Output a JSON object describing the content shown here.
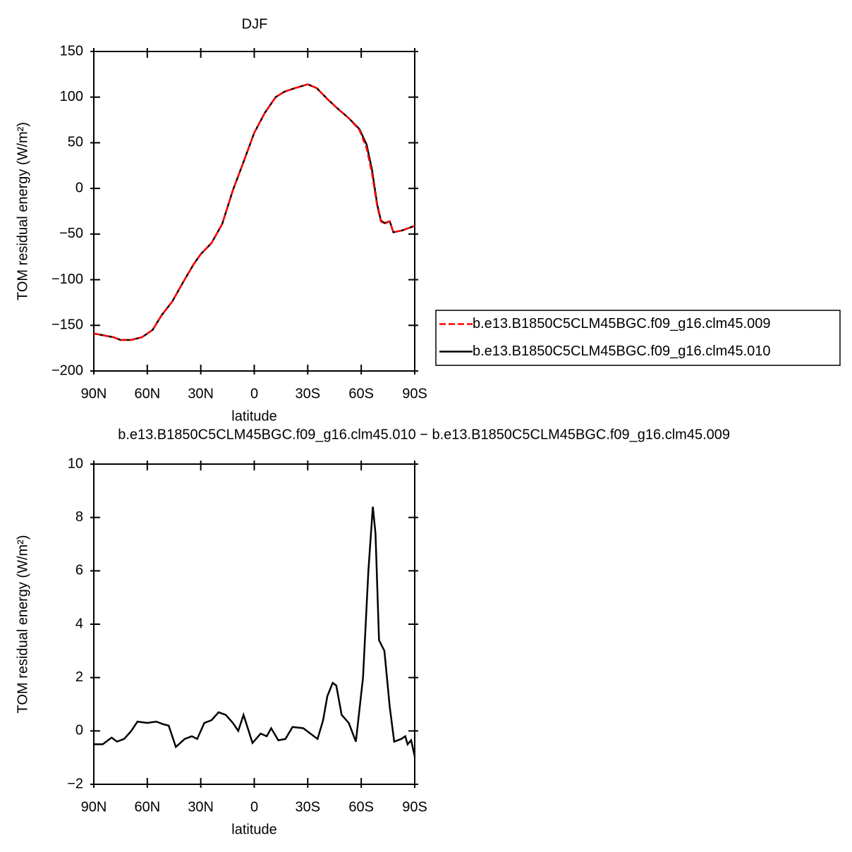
{
  "chart_data": [
    {
      "type": "line",
      "title": "DJF",
      "xlabel": "latitude",
      "ylabel": "TOM residual energy (W/m²)",
      "x": [
        90,
        79,
        75,
        69,
        63,
        57,
        52,
        46,
        40,
        34,
        30,
        24,
        18,
        12,
        6,
        0,
        -6,
        -12,
        -17,
        -23,
        -30,
        -35,
        -41,
        -47,
        -53,
        -59,
        -63,
        -66,
        -69,
        -71,
        -73,
        -76,
        -78,
        -83,
        -90
      ],
      "series": [
        {
          "name": "b.e13.B1850C5CLM45BGC.f09_g16.clm45.009",
          "color": "#ff0000",
          "style": "dashed",
          "values": [
            -159,
            -163,
            -166,
            -166,
            -163,
            -155,
            -139,
            -124,
            -103,
            -83,
            -72,
            -60,
            -39,
            -2,
            29,
            61,
            83,
            100,
            106,
            110,
            114,
            110,
            98,
            87,
            77,
            64,
            44,
            17,
            -20,
            -36,
            -39,
            -36,
            -48,
            -46,
            -41
          ]
        },
        {
          "name": "b.e13.B1850C5CLM45BGC.f09_g16.clm45.010",
          "color": "#000000",
          "style": "solid",
          "values": [
            -159,
            -163,
            -166,
            -166,
            -163,
            -155,
            -139,
            -124,
            -103,
            -83,
            -72,
            -60,
            -39,
            -2,
            29,
            61,
            83,
            100,
            106,
            110,
            114,
            110,
            98,
            87,
            77,
            65,
            48,
            21,
            -18,
            -35,
            -38,
            -36,
            -48,
            -46,
            -41
          ]
        }
      ],
      "xlim": [
        90,
        -90
      ],
      "xticks": [
        {
          "value": 90,
          "label": "90N"
        },
        {
          "value": 60,
          "label": "60N"
        },
        {
          "value": 30,
          "label": "30N"
        },
        0,
        {
          "value": -30,
          "label": "30S"
        },
        {
          "value": -60,
          "label": "60S"
        },
        {
          "value": -90,
          "label": "90S"
        }
      ],
      "ylim": [
        -200,
        150
      ],
      "yticks": [
        {
          "value": -200,
          "label": "−200"
        },
        {
          "value": -150,
          "label": "−150"
        },
        {
          "value": -100,
          "label": "−100"
        },
        {
          "value": -50,
          "label": "−50"
        },
        0,
        50,
        100,
        150
      ],
      "legend": "right"
    },
    {
      "type": "line",
      "title": "b.e13.B1850C5CLM45BGC.f09_g16.clm45.010 − b.e13.B1850C5CLM45BGC.f09_g16.clm45.009",
      "xlabel": "latitude",
      "ylabel": "TOM residual energy (W/m²)",
      "x": [
        90,
        85,
        80,
        77,
        73,
        69,
        65.5,
        60,
        55,
        51,
        48,
        44,
        39,
        35,
        32,
        28,
        24,
        20,
        16,
        12,
        9,
        6,
        1,
        -3.6,
        -7,
        -9.5,
        -13.5,
        -17.5,
        -21.5,
        -27.5,
        -31.5,
        -35.5,
        -38.6,
        -41,
        -44,
        -46,
        -49,
        -53,
        -57,
        -61,
        -64,
        -66.5,
        -68,
        -70,
        -73,
        -76,
        -78.5,
        -82.5,
        -84.7,
        -86,
        -88,
        -90
      ],
      "series": [
        {
          "color": "#000000",
          "style": "solid",
          "values": [
            -0.5,
            -0.5,
            -0.25,
            -0.4,
            -0.3,
            0.0,
            0.35,
            0.3,
            0.35,
            0.25,
            0.2,
            -0.6,
            -0.3,
            -0.2,
            -0.3,
            0.3,
            0.4,
            0.7,
            0.6,
            0.3,
            0.0,
            0.6,
            -0.45,
            -0.1,
            -0.2,
            0.1,
            -0.35,
            -0.3,
            0.15,
            0.1,
            -0.1,
            -0.3,
            0.4,
            1.3,
            1.8,
            1.7,
            0.6,
            0.3,
            -0.4,
            2.0,
            6.0,
            8.4,
            7.4,
            3.4,
            3.0,
            0.9,
            -0.4,
            -0.3,
            -0.2,
            -0.5,
            -0.35,
            -0.95
          ]
        }
      ],
      "xlim": [
        90,
        -90
      ],
      "xticks": [
        {
          "value": 90,
          "label": "90N"
        },
        {
          "value": 60,
          "label": "60N"
        },
        {
          "value": 30,
          "label": "30N"
        },
        0,
        {
          "value": -30,
          "label": "30S"
        },
        {
          "value": -60,
          "label": "60S"
        },
        {
          "value": -90,
          "label": "90S"
        }
      ],
      "ylim": [
        -2,
        10
      ],
      "yticks": [
        {
          "value": -2,
          "label": "−2"
        },
        0,
        2,
        4,
        6,
        8,
        10
      ]
    }
  ]
}
